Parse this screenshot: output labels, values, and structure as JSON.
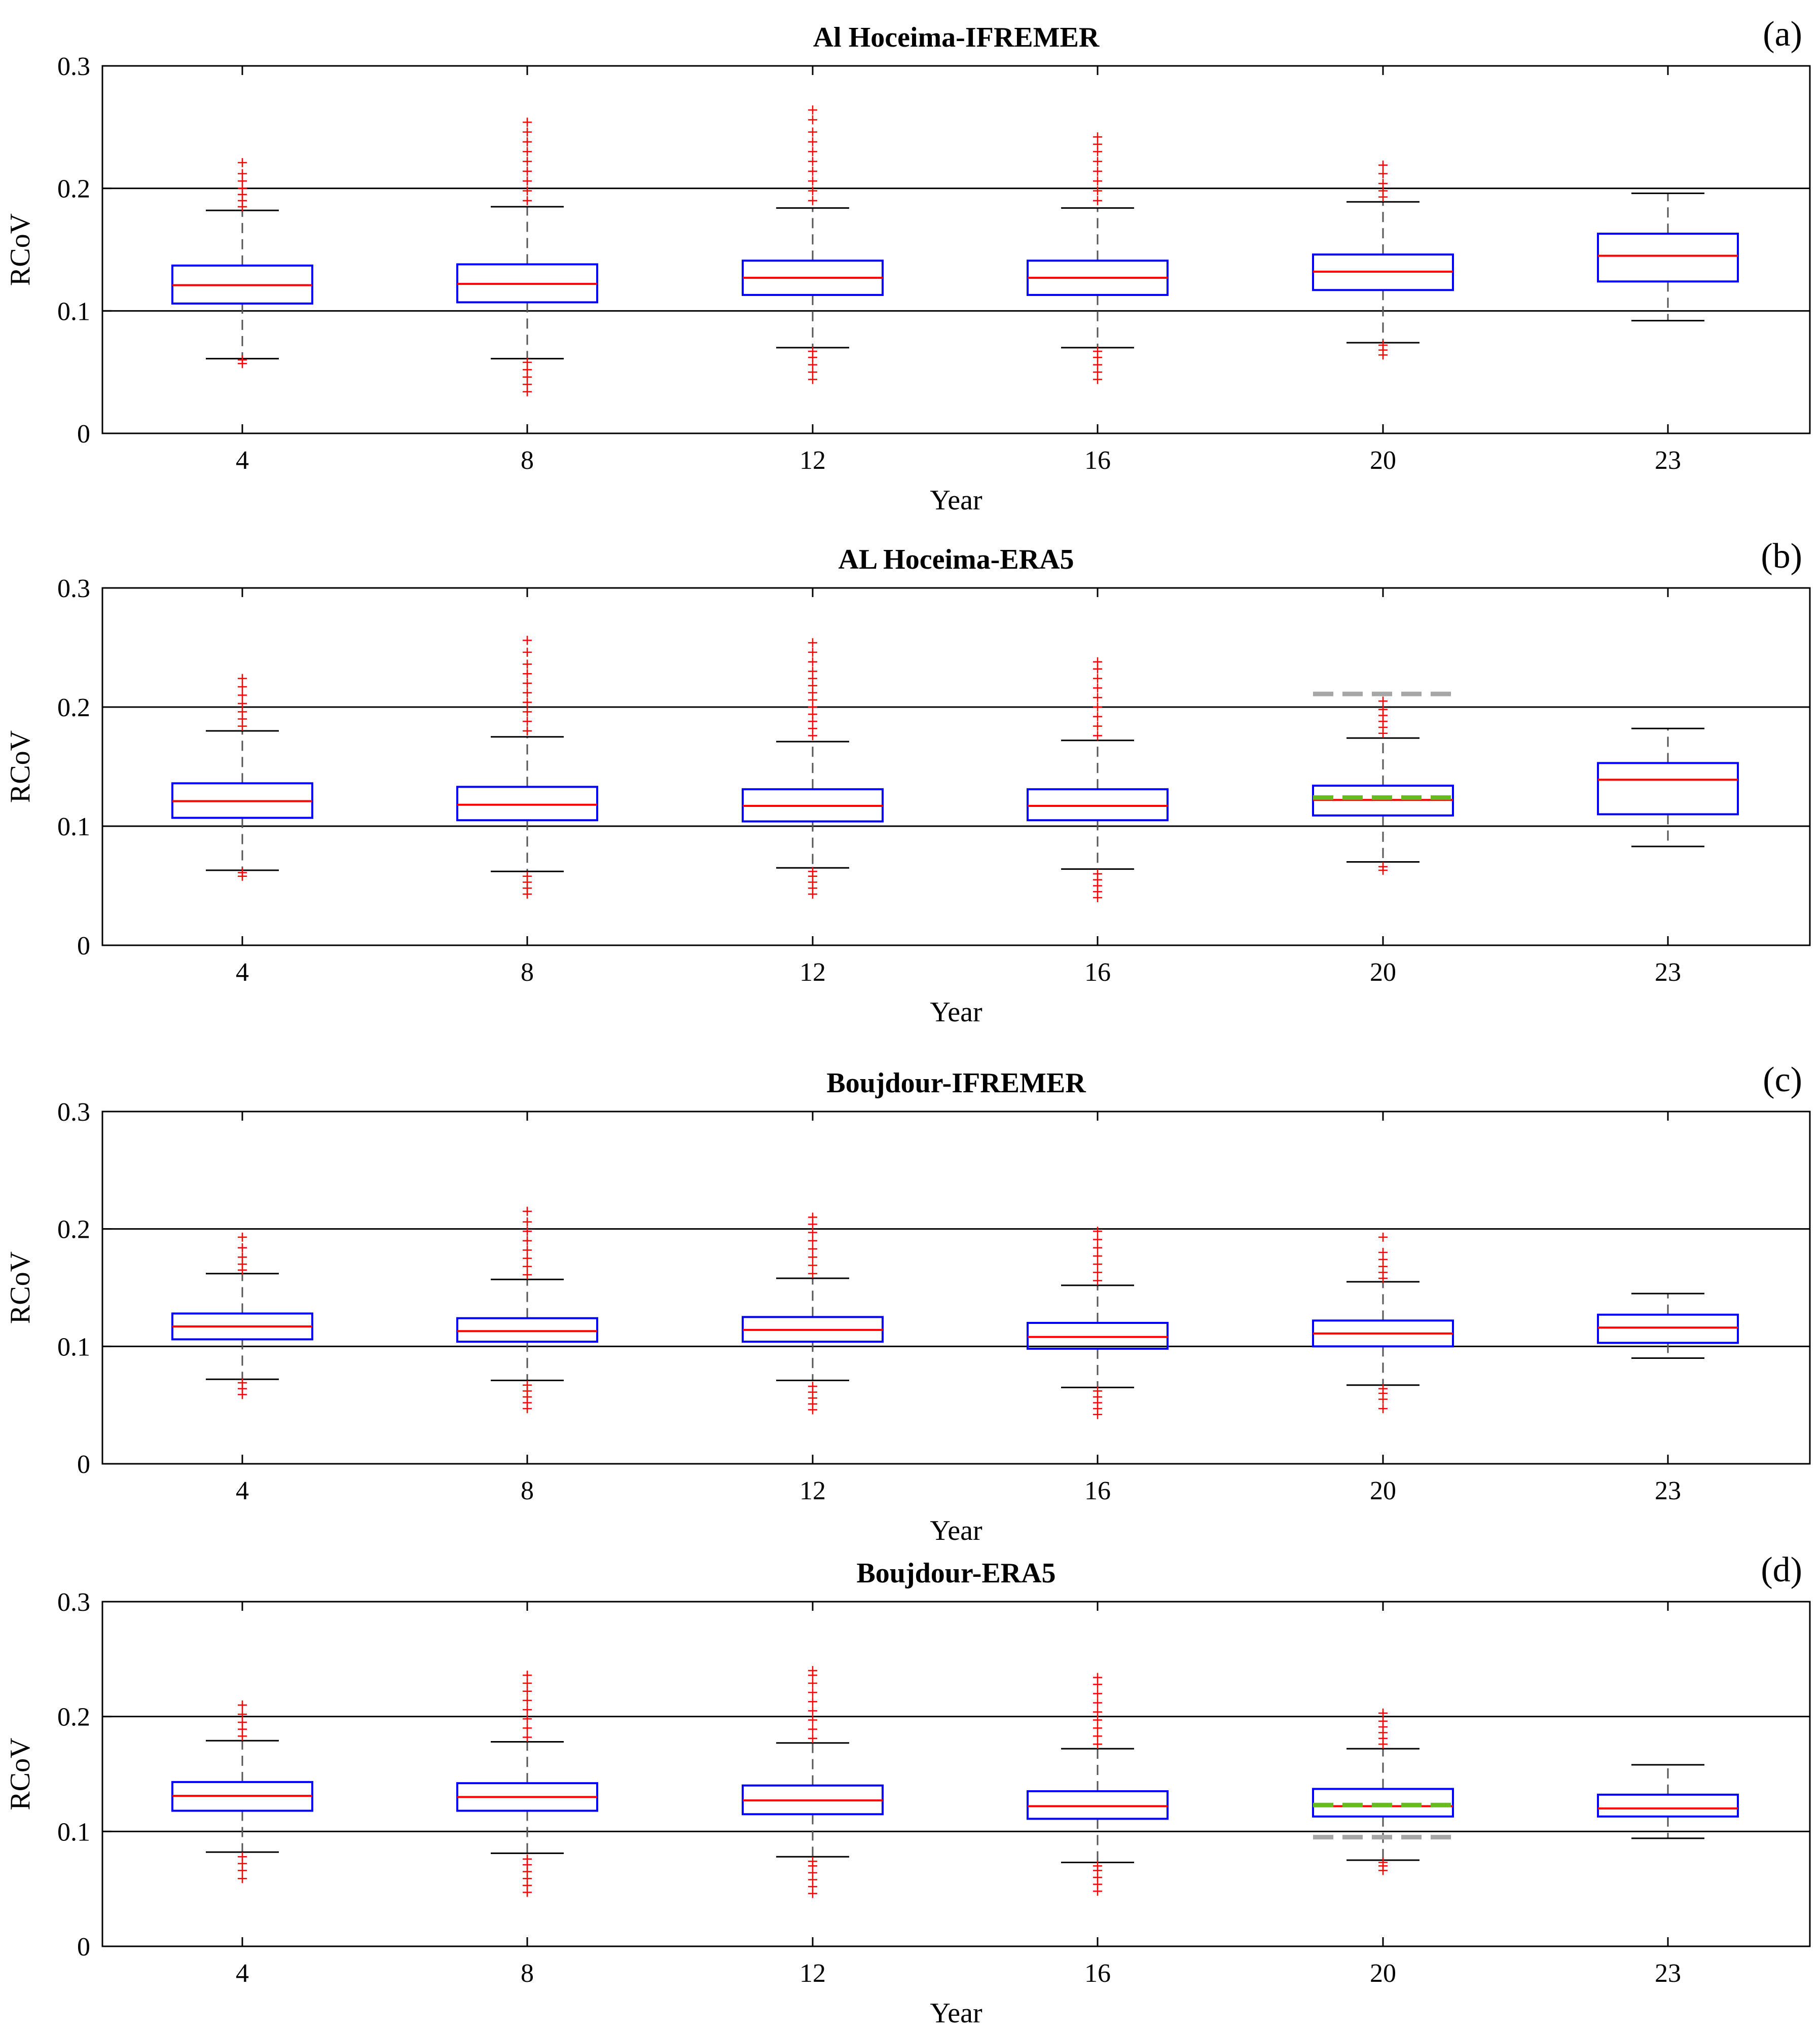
{
  "chart_data": [
    {
      "type": "box",
      "panel_label": "(a)",
      "title": "Al Hoceima-IFREMER",
      "xlabel": "Year",
      "ylabel": "RCoV",
      "ylim": [
        0,
        0.3
      ],
      "yticks": [
        "0",
        "0.1",
        "0.2",
        "0.3"
      ],
      "hlines": [
        0.1,
        0.2
      ],
      "categories": [
        "4",
        "8",
        "12",
        "16",
        "20",
        "23"
      ],
      "boxes": [
        {
          "q1": 0.106,
          "median": 0.121,
          "q3": 0.137,
          "whisker_low": 0.061,
          "whisker_high": 0.182,
          "outliers_low": [
            0.057,
            0.06
          ],
          "outliers_high": [
            0.185,
            0.19,
            0.195,
            0.2,
            0.206,
            0.212,
            0.221
          ]
        },
        {
          "q1": 0.107,
          "median": 0.122,
          "q3": 0.138,
          "whisker_low": 0.061,
          "whisker_high": 0.185,
          "outliers_low": [
            0.034,
            0.04,
            0.046,
            0.052,
            0.058
          ],
          "outliers_high": [
            0.19,
            0.198,
            0.206,
            0.214,
            0.222,
            0.23,
            0.238,
            0.246,
            0.254
          ]
        },
        {
          "q1": 0.113,
          "median": 0.127,
          "q3": 0.141,
          "whisker_low": 0.07,
          "whisker_high": 0.184,
          "outliers_low": [
            0.044,
            0.05,
            0.056,
            0.062,
            0.067
          ],
          "outliers_high": [
            0.19,
            0.198,
            0.206,
            0.214,
            0.222,
            0.23,
            0.238,
            0.246,
            0.256,
            0.264
          ]
        },
        {
          "q1": 0.113,
          "median": 0.127,
          "q3": 0.141,
          "whisker_low": 0.07,
          "whisker_high": 0.184,
          "outliers_low": [
            0.044,
            0.05,
            0.056,
            0.062,
            0.067
          ],
          "outliers_high": [
            0.19,
            0.198,
            0.206,
            0.214,
            0.222,
            0.23,
            0.236,
            0.242
          ]
        },
        {
          "q1": 0.117,
          "median": 0.132,
          "q3": 0.146,
          "whisker_low": 0.074,
          "whisker_high": 0.189,
          "outliers_low": [
            0.064,
            0.068,
            0.072
          ],
          "outliers_high": [
            0.193,
            0.198,
            0.204,
            0.212,
            0.219
          ]
        },
        {
          "q1": 0.124,
          "median": 0.145,
          "q3": 0.163,
          "whisker_low": 0.092,
          "whisker_high": 0.196,
          "outliers_low": [],
          "outliers_high": []
        }
      ]
    },
    {
      "type": "box",
      "panel_label": "(b)",
      "title": "AL Hoceima-ERA5",
      "xlabel": "Year",
      "ylabel": "RCoV",
      "ylim": [
        0,
        0.3
      ],
      "yticks": [
        "0",
        "0.1",
        "0.2",
        "0.3"
      ],
      "hlines": [
        0.1,
        0.2
      ],
      "categories": [
        "4",
        "8",
        "12",
        "16",
        "20",
        "23"
      ],
      "boxes": [
        {
          "q1": 0.107,
          "median": 0.121,
          "q3": 0.136,
          "whisker_low": 0.063,
          "whisker_high": 0.18,
          "outliers_low": [
            0.058,
            0.061
          ],
          "outliers_high": [
            0.184,
            0.19,
            0.196,
            0.203,
            0.21,
            0.217,
            0.224
          ]
        },
        {
          "q1": 0.105,
          "median": 0.118,
          "q3": 0.133,
          "whisker_low": 0.062,
          "whisker_high": 0.175,
          "outliers_low": [
            0.043,
            0.048,
            0.053,
            0.058
          ],
          "outliers_high": [
            0.18,
            0.188,
            0.196,
            0.204,
            0.212,
            0.22,
            0.228,
            0.236,
            0.246,
            0.256
          ]
        },
        {
          "q1": 0.104,
          "median": 0.117,
          "q3": 0.131,
          "whisker_low": 0.065,
          "whisker_high": 0.171,
          "outliers_low": [
            0.043,
            0.048,
            0.053,
            0.058,
            0.062
          ],
          "outliers_high": [
            0.176,
            0.182,
            0.188,
            0.194,
            0.2,
            0.206,
            0.212,
            0.218,
            0.224,
            0.23,
            0.238,
            0.246,
            0.254
          ]
        },
        {
          "q1": 0.105,
          "median": 0.117,
          "q3": 0.131,
          "whisker_low": 0.064,
          "whisker_high": 0.172,
          "outliers_low": [
            0.04,
            0.045,
            0.05,
            0.055,
            0.06
          ],
          "outliers_high": [
            0.176,
            0.184,
            0.192,
            0.2,
            0.208,
            0.216,
            0.224,
            0.232,
            0.238
          ]
        },
        {
          "q1": 0.109,
          "median": 0.122,
          "q3": 0.134,
          "whisker_low": 0.07,
          "whisker_high": 0.174,
          "outliers_low": [
            0.063,
            0.066
          ],
          "outliers_high": [
            0.178,
            0.183,
            0.188,
            0.193,
            0.198,
            0.205
          ]
        },
        {
          "q1": 0.11,
          "median": 0.139,
          "q3": 0.153,
          "whisker_low": 0.083,
          "whisker_high": 0.182,
          "outliers_low": [],
          "outliers_high": []
        }
      ],
      "reference_lines": [
        {
          "category": "20",
          "value": 0.211,
          "color": "#a6a6a6",
          "style": "dashed"
        },
        {
          "category": "20",
          "value": 0.124,
          "color": "#66bb22",
          "style": "dashed"
        }
      ]
    },
    {
      "type": "box",
      "panel_label": "(c)",
      "title": "Boujdour-IFREMER",
      "xlabel": "Year",
      "ylabel": "RCoV",
      "ylim": [
        0,
        0.3
      ],
      "yticks": [
        "0",
        "0.1",
        "0.2",
        "0.3"
      ],
      "hlines": [
        0.1,
        0.2
      ],
      "categories": [
        "4",
        "8",
        "12",
        "16",
        "20",
        "23"
      ],
      "boxes": [
        {
          "q1": 0.106,
          "median": 0.117,
          "q3": 0.128,
          "whisker_low": 0.072,
          "whisker_high": 0.162,
          "outliers_low": [
            0.059,
            0.064,
            0.069
          ],
          "outliers_high": [
            0.165,
            0.17,
            0.176,
            0.184,
            0.193
          ]
        },
        {
          "q1": 0.104,
          "median": 0.113,
          "q3": 0.124,
          "whisker_low": 0.071,
          "whisker_high": 0.157,
          "outliers_low": [
            0.047,
            0.052,
            0.057,
            0.062,
            0.067
          ],
          "outliers_high": [
            0.161,
            0.168,
            0.175,
            0.182,
            0.19,
            0.198,
            0.206,
            0.215
          ]
        },
        {
          "q1": 0.104,
          "median": 0.114,
          "q3": 0.125,
          "whisker_low": 0.071,
          "whisker_high": 0.158,
          "outliers_low": [
            0.046,
            0.051,
            0.056,
            0.061,
            0.066
          ],
          "outliers_high": [
            0.162,
            0.169,
            0.176,
            0.183,
            0.19,
            0.197,
            0.204,
            0.21
          ]
        },
        {
          "q1": 0.098,
          "median": 0.108,
          "q3": 0.12,
          "whisker_low": 0.065,
          "whisker_high": 0.152,
          "outliers_low": [
            0.042,
            0.047,
            0.052,
            0.057,
            0.062
          ],
          "outliers_high": [
            0.156,
            0.163,
            0.17,
            0.177,
            0.184,
            0.191,
            0.198
          ]
        },
        {
          "q1": 0.1,
          "median": 0.111,
          "q3": 0.122,
          "whisker_low": 0.067,
          "whisker_high": 0.155,
          "outliers_low": [
            0.047,
            0.055,
            0.06,
            0.064
          ],
          "outliers_high": [
            0.158,
            0.163,
            0.168,
            0.174,
            0.18,
            0.193
          ]
        },
        {
          "q1": 0.103,
          "median": 0.116,
          "q3": 0.127,
          "whisker_low": 0.09,
          "whisker_high": 0.145,
          "outliers_low": [],
          "outliers_high": []
        }
      ]
    },
    {
      "type": "box",
      "panel_label": "(d)",
      "title": "Boujdour-ERA5",
      "xlabel": "Year",
      "ylabel": "RCoV",
      "ylim": [
        0,
        0.3
      ],
      "yticks": [
        "0",
        "0.1",
        "0.2",
        "0.3"
      ],
      "hlines": [
        0.1,
        0.2
      ],
      "categories": [
        "4",
        "8",
        "12",
        "16",
        "20",
        "23"
      ],
      "boxes": [
        {
          "q1": 0.118,
          "median": 0.131,
          "q3": 0.143,
          "whisker_low": 0.082,
          "whisker_high": 0.179,
          "outliers_low": [
            0.059,
            0.066,
            0.072,
            0.078
          ],
          "outliers_high": [
            0.183,
            0.189,
            0.195,
            0.202,
            0.21
          ]
        },
        {
          "q1": 0.118,
          "median": 0.13,
          "q3": 0.142,
          "whisker_low": 0.081,
          "whisker_high": 0.178,
          "outliers_low": [
            0.047,
            0.053,
            0.059,
            0.065,
            0.071,
            0.076
          ],
          "outliers_high": [
            0.182,
            0.19,
            0.198,
            0.206,
            0.214,
            0.222,
            0.229,
            0.236
          ]
        },
        {
          "q1": 0.115,
          "median": 0.127,
          "q3": 0.14,
          "whisker_low": 0.078,
          "whisker_high": 0.177,
          "outliers_low": [
            0.046,
            0.052,
            0.058,
            0.064,
            0.07,
            0.074
          ],
          "outliers_high": [
            0.181,
            0.189,
            0.197,
            0.205,
            0.213,
            0.221,
            0.229,
            0.236,
            0.24
          ]
        },
        {
          "q1": 0.111,
          "median": 0.122,
          "q3": 0.135,
          "whisker_low": 0.073,
          "whisker_high": 0.172,
          "outliers_low": [
            0.048,
            0.054,
            0.06,
            0.066,
            0.07
          ],
          "outliers_high": [
            0.176,
            0.183,
            0.19,
            0.197,
            0.204,
            0.212,
            0.22,
            0.228,
            0.234
          ]
        },
        {
          "q1": 0.113,
          "median": 0.122,
          "q3": 0.137,
          "whisker_low": 0.075,
          "whisker_high": 0.172,
          "outliers_low": [
            0.066,
            0.07,
            0.073
          ],
          "outliers_high": [
            0.176,
            0.181,
            0.186,
            0.191,
            0.196,
            0.203
          ]
        },
        {
          "q1": 0.113,
          "median": 0.12,
          "q3": 0.132,
          "whisker_low": 0.094,
          "whisker_high": 0.158,
          "outliers_low": [],
          "outliers_high": []
        }
      ],
      "reference_lines": [
        {
          "category": "20",
          "value": 0.095,
          "color": "#a6a6a6",
          "style": "dashed"
        },
        {
          "category": "20",
          "value": 0.123,
          "color": "#66bb22",
          "style": "dashed"
        }
      ]
    }
  ],
  "colors": {
    "box": "#0000ff",
    "median": "#ff0000",
    "outlier": "#ff0000",
    "whisker": "#555555",
    "gridline": "#000000",
    "axes": "#000000"
  }
}
